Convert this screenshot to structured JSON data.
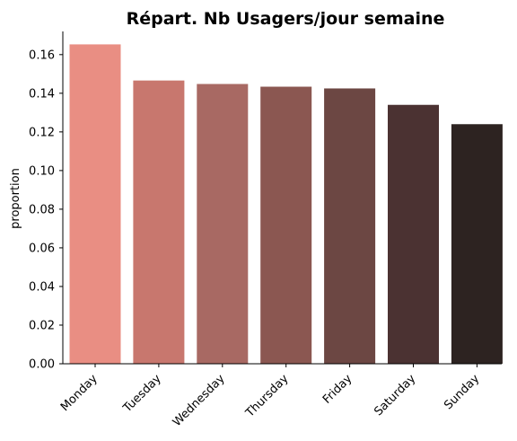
{
  "chart_data": {
    "type": "bar",
    "title": "Répart. Nb Usagers/jour semaine",
    "xlabel": "",
    "ylabel": "proportion",
    "categories": [
      "Monday",
      "Tuesday",
      "Wednesday",
      "Thursday",
      "Friday",
      "Saturday",
      "Sunday"
    ],
    "values": [
      0.1653,
      0.1466,
      0.1448,
      0.1434,
      0.1425,
      0.134,
      0.124
    ],
    "colors": [
      "#e98e83",
      "#c8776e",
      "#a86963",
      "#8b5751",
      "#6c4743",
      "#4b3232",
      "#2d2321"
    ],
    "ylim": [
      0,
      0.172
    ],
    "yticks": [
      0.0,
      0.02,
      0.04,
      0.06,
      0.08,
      0.1,
      0.12,
      0.14,
      0.16
    ],
    "ytick_labels": [
      "0.00",
      "0.02",
      "0.04",
      "0.06",
      "0.08",
      "0.10",
      "0.12",
      "0.14",
      "0.16"
    ],
    "grid": false,
    "legend": "none"
  }
}
